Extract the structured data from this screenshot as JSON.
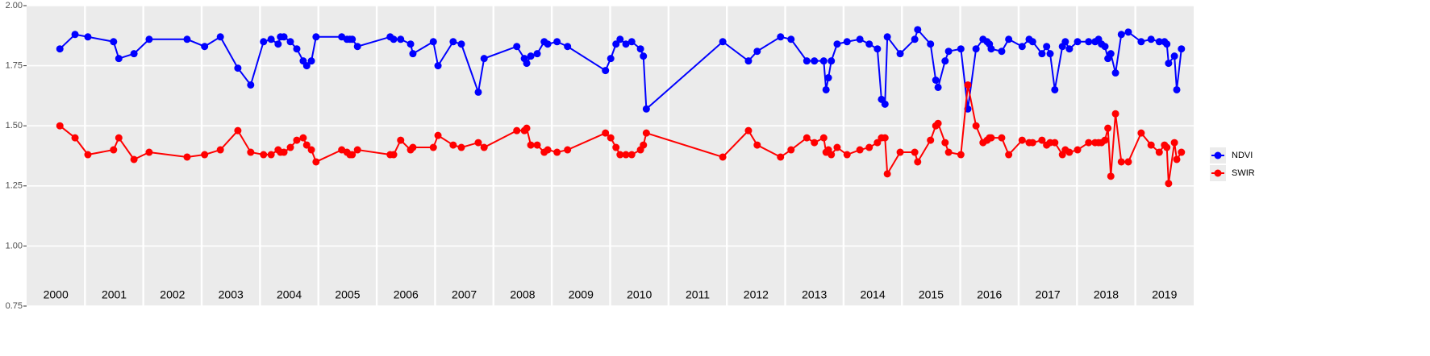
{
  "chart_data": {
    "type": "line",
    "x": [
      2000.57,
      2000.83,
      2001.05,
      2001.49,
      2001.58,
      2001.84,
      2002.1,
      2002.75,
      2003.05,
      2003.32,
      2003.62,
      2003.84,
      2004.06,
      2004.19,
      2004.31,
      2004.35,
      2004.41,
      2004.52,
      2004.63,
      2004.74,
      2004.8,
      2004.88,
      2004.96,
      2005.4,
      2005.49,
      2005.54,
      2005.58,
      2005.67,
      2006.23,
      2006.29,
      2006.41,
      2006.58,
      2006.62,
      2006.97,
      2007.05,
      2007.31,
      2007.45,
      2007.74,
      2007.84,
      2008.4,
      2008.53,
      2008.57,
      2008.64,
      2008.75,
      2008.87,
      2008.93,
      2009.09,
      2009.27,
      2009.92,
      2010.01,
      2010.1,
      2010.17,
      2010.27,
      2010.37,
      2010.52,
      2010.57,
      2010.62,
      2011.93,
      2012.37,
      2012.52,
      2012.92,
      2013.1,
      2013.37,
      2013.5,
      2013.66,
      2013.7,
      2013.74,
      2013.79,
      2013.89,
      2014.06,
      2014.28,
      2014.44,
      2014.58,
      2014.65,
      2014.71,
      2014.75,
      2014.97,
      2015.22,
      2015.27,
      2015.49,
      2015.58,
      2015.62,
      2015.74,
      2015.8,
      2016.01,
      2016.13,
      2016.27,
      2016.39,
      2016.46,
      2016.5,
      2016.53,
      2016.71,
      2016.83,
      2017.06,
      2017.18,
      2017.24,
      2017.4,
      2017.48,
      2017.54,
      2017.62,
      2017.75,
      2017.8,
      2017.87,
      2018.01,
      2018.2,
      2018.31,
      2018.37,
      2018.42,
      2018.48,
      2018.53,
      2018.58,
      2018.66,
      2018.76,
      2018.88,
      2019.1,
      2019.27,
      2019.41,
      2019.5,
      2019.54,
      2019.57,
      2019.67,
      2019.71,
      2019.79
    ],
    "series": [
      {
        "name": "NDVI",
        "color": "#0000ff",
        "values": [
          1.82,
          1.88,
          1.87,
          1.85,
          1.78,
          1.8,
          1.86,
          1.86,
          1.83,
          1.87,
          1.74,
          1.67,
          1.85,
          1.86,
          1.84,
          1.87,
          1.87,
          1.85,
          1.82,
          1.77,
          1.75,
          1.77,
          1.87,
          1.87,
          1.86,
          1.86,
          1.86,
          1.83,
          1.87,
          1.86,
          1.86,
          1.84,
          1.8,
          1.85,
          1.75,
          1.85,
          1.84,
          1.64,
          1.78,
          1.83,
          1.78,
          1.76,
          1.79,
          1.8,
          1.85,
          1.84,
          1.85,
          1.83,
          1.73,
          1.78,
          1.84,
          1.86,
          1.84,
          1.85,
          1.82,
          1.79,
          1.57,
          1.85,
          1.77,
          1.81,
          1.87,
          1.86,
          1.77,
          1.77,
          1.77,
          1.65,
          1.7,
          1.77,
          1.84,
          1.85,
          1.86,
          1.84,
          1.82,
          1.61,
          1.59,
          1.87,
          1.8,
          1.86,
          1.9,
          1.84,
          1.69,
          1.66,
          1.77,
          1.81,
          1.82,
          1.57,
          1.82,
          1.86,
          1.85,
          1.84,
          1.82,
          1.81,
          1.86,
          1.83,
          1.86,
          1.85,
          1.8,
          1.83,
          1.8,
          1.65,
          1.83,
          1.85,
          1.82,
          1.85,
          1.85,
          1.85,
          1.86,
          1.84,
          1.83,
          1.78,
          1.8,
          1.72,
          1.88,
          1.89,
          1.85,
          1.86,
          1.85,
          1.85,
          1.84,
          1.76,
          1.79,
          1.65,
          1.82
        ]
      },
      {
        "name": "SWIR",
        "color": "#ff0000",
        "values": [
          1.5,
          1.45,
          1.38,
          1.4,
          1.45,
          1.36,
          1.39,
          1.37,
          1.38,
          1.4,
          1.48,
          1.39,
          1.38,
          1.38,
          1.4,
          1.39,
          1.39,
          1.41,
          1.44,
          1.45,
          1.42,
          1.4,
          1.35,
          1.4,
          1.39,
          1.38,
          1.38,
          1.4,
          1.38,
          1.38,
          1.44,
          1.4,
          1.41,
          1.41,
          1.46,
          1.42,
          1.41,
          1.43,
          1.41,
          1.48,
          1.48,
          1.49,
          1.42,
          1.42,
          1.39,
          1.4,
          1.39,
          1.4,
          1.47,
          1.45,
          1.41,
          1.38,
          1.38,
          1.38,
          1.4,
          1.42,
          1.47,
          1.37,
          1.48,
          1.42,
          1.37,
          1.4,
          1.45,
          1.43,
          1.45,
          1.39,
          1.4,
          1.38,
          1.41,
          1.38,
          1.4,
          1.41,
          1.43,
          1.45,
          1.45,
          1.3,
          1.39,
          1.39,
          1.35,
          1.44,
          1.5,
          1.51,
          1.43,
          1.39,
          1.38,
          1.67,
          1.5,
          1.43,
          1.44,
          1.45,
          1.45,
          1.45,
          1.38,
          1.44,
          1.43,
          1.43,
          1.44,
          1.42,
          1.43,
          1.43,
          1.38,
          1.4,
          1.39,
          1.4,
          1.43,
          1.43,
          1.43,
          1.43,
          1.44,
          1.49,
          1.29,
          1.55,
          1.35,
          1.35,
          1.47,
          1.42,
          1.39,
          1.42,
          1.41,
          1.26,
          1.43,
          1.36,
          1.39
        ]
      }
    ],
    "xlim": [
      2000,
      2020
    ],
    "xticks": [
      {
        "value": 2000.5,
        "label": "2000"
      },
      {
        "value": 2001.5,
        "label": "2001"
      },
      {
        "value": 2002.5,
        "label": "2002"
      },
      {
        "value": 2003.5,
        "label": "2003"
      },
      {
        "value": 2004.5,
        "label": "2004"
      },
      {
        "value": 2005.5,
        "label": "2005"
      },
      {
        "value": 2006.5,
        "label": "2006"
      },
      {
        "value": 2007.5,
        "label": "2007"
      },
      {
        "value": 2008.5,
        "label": "2008"
      },
      {
        "value": 2009.5,
        "label": "2009"
      },
      {
        "value": 2010.5,
        "label": "2010"
      },
      {
        "value": 2011.5,
        "label": "2011"
      },
      {
        "value": 2012.5,
        "label": "2012"
      },
      {
        "value": 2013.5,
        "label": "2013"
      },
      {
        "value": 2014.5,
        "label": "2014"
      },
      {
        "value": 2015.5,
        "label": "2015"
      },
      {
        "value": 2016.5,
        "label": "2016"
      },
      {
        "value": 2017.5,
        "label": "2017"
      },
      {
        "value": 2018.5,
        "label": "2018"
      },
      {
        "value": 2019.5,
        "label": "2019"
      }
    ],
    "xgrid": [
      2001,
      2002,
      2003,
      2004,
      2005,
      2006,
      2007,
      2008,
      2009,
      2010,
      2011,
      2012,
      2013,
      2014,
      2015,
      2016,
      2017,
      2018,
      2019
    ],
    "ylim": [
      0.75,
      2.0
    ],
    "yticks": [
      0.75,
      {
        "value": 1.0,
        "label": "1.00"
      },
      1.25,
      {
        "value": 1.5,
        "label": "1.50"
      },
      1.75,
      {
        "value": 2.0,
        "label": "2.00"
      }
    ],
    "grid": true,
    "legend": "right"
  }
}
